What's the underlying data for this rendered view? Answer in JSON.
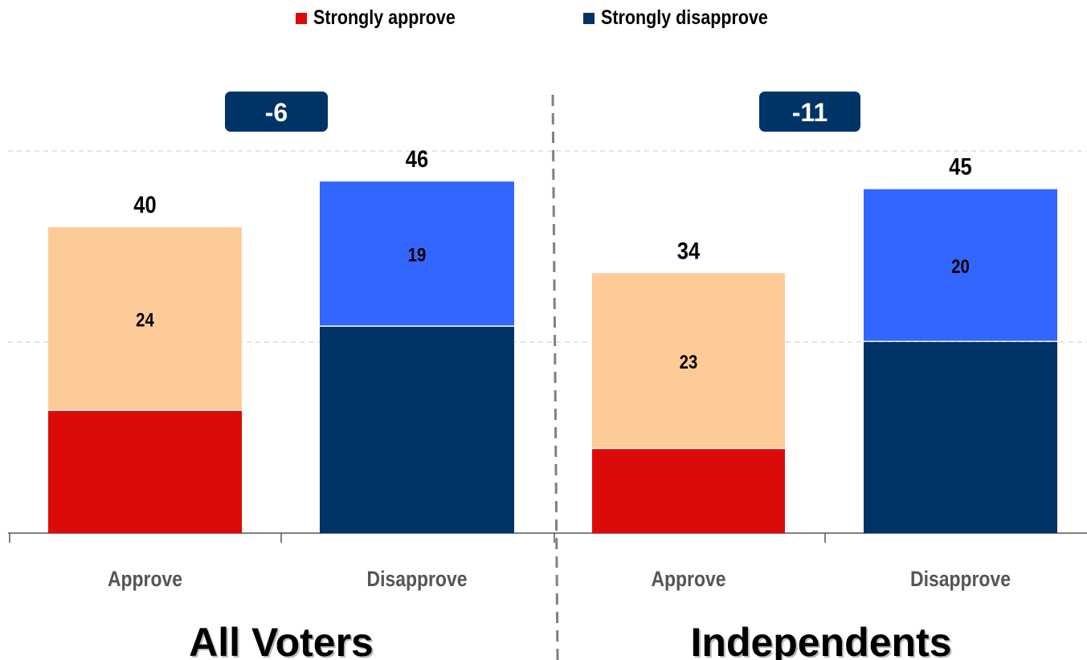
{
  "legend": {
    "strongly_approve": "Strongly approve",
    "strongly_disapprove": "Strongly disapprove"
  },
  "colors": {
    "strongly_approve": "#dd0a0a",
    "approve_rest": "#fdcb98",
    "strongly_disapprove": "#003366",
    "disapprove_rest": "#3366ff",
    "badge": "#003366",
    "gridline": "#c8c8c8",
    "divider": "#808080"
  },
  "chart_data": {
    "type": "bar",
    "stacked": true,
    "ylim": [
      0,
      50
    ],
    "grid": true,
    "legend_position": "top",
    "panels": [
      {
        "title": "All Voters",
        "net": "-6",
        "categories": [
          "Approve",
          "Disapprove"
        ],
        "totals": [
          40,
          46
        ],
        "strong": [
          16,
          27
        ],
        "rest": [
          24,
          19
        ]
      },
      {
        "title": "Independents",
        "net": "-11",
        "categories": [
          "Approve",
          "Disapprove"
        ],
        "totals": [
          34,
          45
        ],
        "strong": [
          11,
          25
        ],
        "rest": [
          23,
          20
        ]
      }
    ]
  }
}
